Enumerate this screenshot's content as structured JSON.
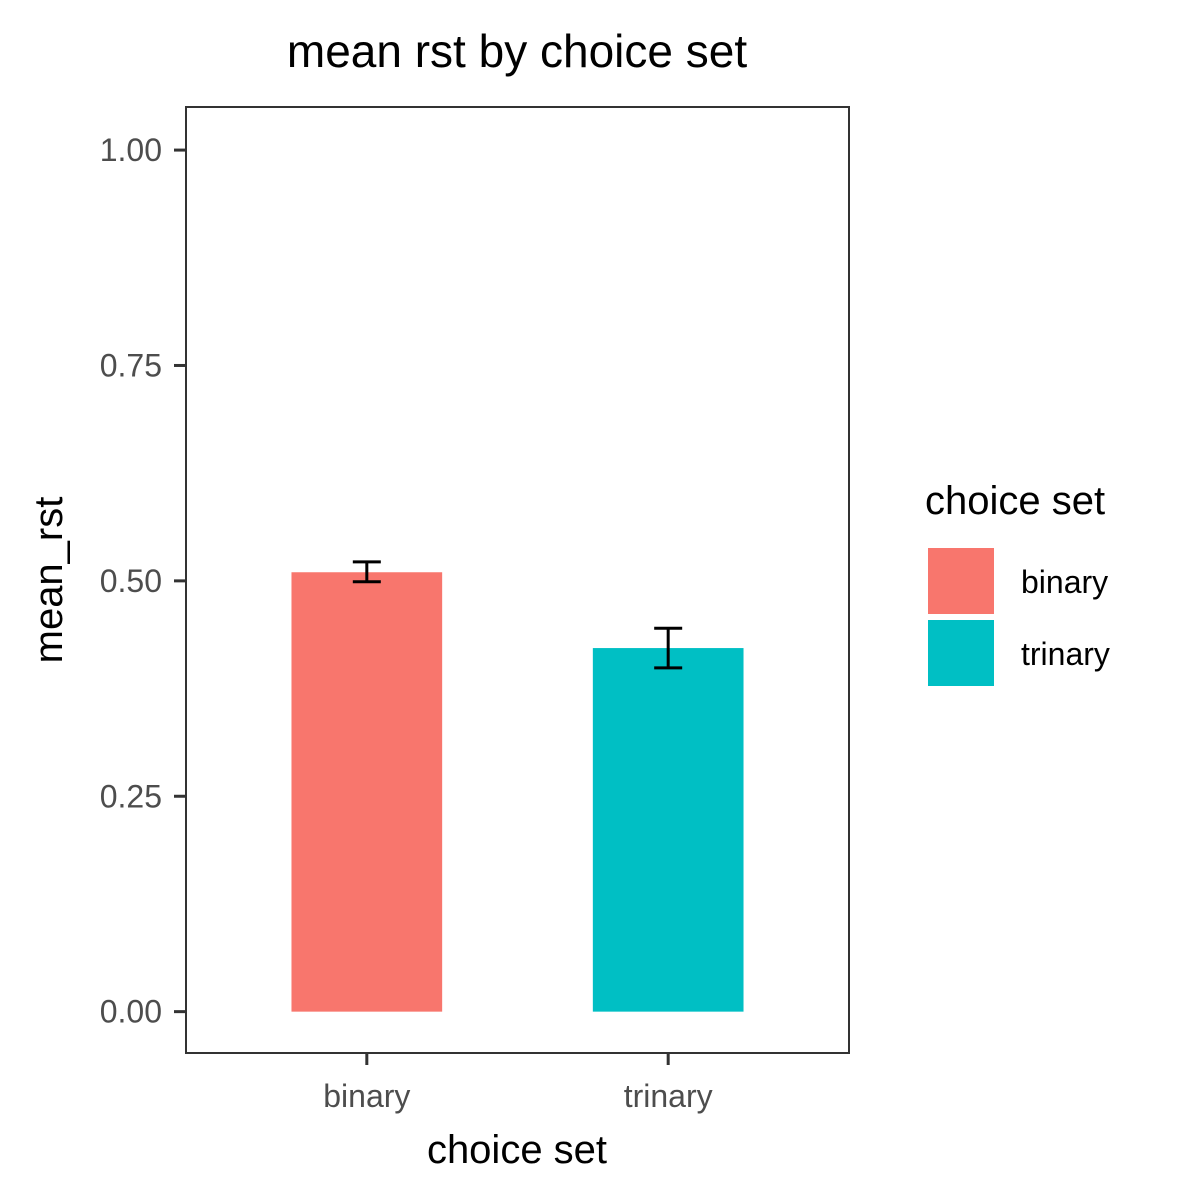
{
  "chart_data": {
    "type": "bar",
    "title": "mean rst by choice set",
    "xlabel": "choice set",
    "ylabel": "mean_rst",
    "categories": [
      "binary",
      "trinary"
    ],
    "values": [
      0.51,
      0.422
    ],
    "error_bars": [
      {
        "low": 0.499,
        "high": 0.522
      },
      {
        "low": 0.399,
        "high": 0.445
      }
    ],
    "colors": [
      "#F8766D",
      "#00BFC4"
    ],
    "yticks": [
      {
        "value": 0,
        "label": "0.00"
      },
      {
        "value": 0.25,
        "label": "0.25"
      },
      {
        "value": 0.5,
        "label": "0.50"
      },
      {
        "value": 0.75,
        "label": "0.75"
      },
      {
        "value": 1,
        "label": "1.00"
      }
    ],
    "ylim": [
      -0.048,
      1.05
    ],
    "grid": false,
    "legend": {
      "title": "choice set",
      "position": "right",
      "entries": [
        {
          "label": "binary",
          "color": "#F8766D"
        },
        {
          "label": "trinary",
          "color": "#00BFC4"
        }
      ]
    }
  }
}
